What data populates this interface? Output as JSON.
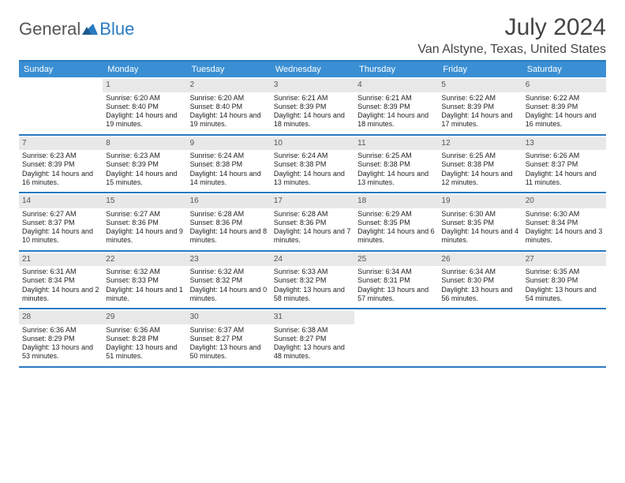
{
  "colors": {
    "accent": "#2a7ac0",
    "header_bg": "#3a8fd4",
    "daynum_bg": "#e8e8e8",
    "text": "#333333",
    "white": "#ffffff"
  },
  "logo": {
    "part1": "General",
    "part2": "Blue"
  },
  "title": "July 2024",
  "location": "Van Alstyne, Texas, United States",
  "weekdays": [
    "Sunday",
    "Monday",
    "Tuesday",
    "Wednesday",
    "Thursday",
    "Friday",
    "Saturday"
  ],
  "weeks": [
    [
      {
        "n": "",
        "empty": true
      },
      {
        "n": "1",
        "sunrise": "Sunrise: 6:20 AM",
        "sunset": "Sunset: 8:40 PM",
        "daylight": "Daylight: 14 hours and 19 minutes."
      },
      {
        "n": "2",
        "sunrise": "Sunrise: 6:20 AM",
        "sunset": "Sunset: 8:40 PM",
        "daylight": "Daylight: 14 hours and 19 minutes."
      },
      {
        "n": "3",
        "sunrise": "Sunrise: 6:21 AM",
        "sunset": "Sunset: 8:39 PM",
        "daylight": "Daylight: 14 hours and 18 minutes."
      },
      {
        "n": "4",
        "sunrise": "Sunrise: 6:21 AM",
        "sunset": "Sunset: 8:39 PM",
        "daylight": "Daylight: 14 hours and 18 minutes."
      },
      {
        "n": "5",
        "sunrise": "Sunrise: 6:22 AM",
        "sunset": "Sunset: 8:39 PM",
        "daylight": "Daylight: 14 hours and 17 minutes."
      },
      {
        "n": "6",
        "sunrise": "Sunrise: 6:22 AM",
        "sunset": "Sunset: 8:39 PM",
        "daylight": "Daylight: 14 hours and 16 minutes."
      }
    ],
    [
      {
        "n": "7",
        "sunrise": "Sunrise: 6:23 AM",
        "sunset": "Sunset: 8:39 PM",
        "daylight": "Daylight: 14 hours and 16 minutes."
      },
      {
        "n": "8",
        "sunrise": "Sunrise: 6:23 AM",
        "sunset": "Sunset: 8:39 PM",
        "daylight": "Daylight: 14 hours and 15 minutes."
      },
      {
        "n": "9",
        "sunrise": "Sunrise: 6:24 AM",
        "sunset": "Sunset: 8:38 PM",
        "daylight": "Daylight: 14 hours and 14 minutes."
      },
      {
        "n": "10",
        "sunrise": "Sunrise: 6:24 AM",
        "sunset": "Sunset: 8:38 PM",
        "daylight": "Daylight: 14 hours and 13 minutes."
      },
      {
        "n": "11",
        "sunrise": "Sunrise: 6:25 AM",
        "sunset": "Sunset: 8:38 PM",
        "daylight": "Daylight: 14 hours and 13 minutes."
      },
      {
        "n": "12",
        "sunrise": "Sunrise: 6:25 AM",
        "sunset": "Sunset: 8:38 PM",
        "daylight": "Daylight: 14 hours and 12 minutes."
      },
      {
        "n": "13",
        "sunrise": "Sunrise: 6:26 AM",
        "sunset": "Sunset: 8:37 PM",
        "daylight": "Daylight: 14 hours and 11 minutes."
      }
    ],
    [
      {
        "n": "14",
        "sunrise": "Sunrise: 6:27 AM",
        "sunset": "Sunset: 8:37 PM",
        "daylight": "Daylight: 14 hours and 10 minutes."
      },
      {
        "n": "15",
        "sunrise": "Sunrise: 6:27 AM",
        "sunset": "Sunset: 8:36 PM",
        "daylight": "Daylight: 14 hours and 9 minutes."
      },
      {
        "n": "16",
        "sunrise": "Sunrise: 6:28 AM",
        "sunset": "Sunset: 8:36 PM",
        "daylight": "Daylight: 14 hours and 8 minutes."
      },
      {
        "n": "17",
        "sunrise": "Sunrise: 6:28 AM",
        "sunset": "Sunset: 8:36 PM",
        "daylight": "Daylight: 14 hours and 7 minutes."
      },
      {
        "n": "18",
        "sunrise": "Sunrise: 6:29 AM",
        "sunset": "Sunset: 8:35 PM",
        "daylight": "Daylight: 14 hours and 6 minutes."
      },
      {
        "n": "19",
        "sunrise": "Sunrise: 6:30 AM",
        "sunset": "Sunset: 8:35 PM",
        "daylight": "Daylight: 14 hours and 4 minutes."
      },
      {
        "n": "20",
        "sunrise": "Sunrise: 6:30 AM",
        "sunset": "Sunset: 8:34 PM",
        "daylight": "Daylight: 14 hours and 3 minutes."
      }
    ],
    [
      {
        "n": "21",
        "sunrise": "Sunrise: 6:31 AM",
        "sunset": "Sunset: 8:34 PM",
        "daylight": "Daylight: 14 hours and 2 minutes."
      },
      {
        "n": "22",
        "sunrise": "Sunrise: 6:32 AM",
        "sunset": "Sunset: 8:33 PM",
        "daylight": "Daylight: 14 hours and 1 minute."
      },
      {
        "n": "23",
        "sunrise": "Sunrise: 6:32 AM",
        "sunset": "Sunset: 8:32 PM",
        "daylight": "Daylight: 14 hours and 0 minutes."
      },
      {
        "n": "24",
        "sunrise": "Sunrise: 6:33 AM",
        "sunset": "Sunset: 8:32 PM",
        "daylight": "Daylight: 13 hours and 58 minutes."
      },
      {
        "n": "25",
        "sunrise": "Sunrise: 6:34 AM",
        "sunset": "Sunset: 8:31 PM",
        "daylight": "Daylight: 13 hours and 57 minutes."
      },
      {
        "n": "26",
        "sunrise": "Sunrise: 6:34 AM",
        "sunset": "Sunset: 8:30 PM",
        "daylight": "Daylight: 13 hours and 56 minutes."
      },
      {
        "n": "27",
        "sunrise": "Sunrise: 6:35 AM",
        "sunset": "Sunset: 8:30 PM",
        "daylight": "Daylight: 13 hours and 54 minutes."
      }
    ],
    [
      {
        "n": "28",
        "sunrise": "Sunrise: 6:36 AM",
        "sunset": "Sunset: 8:29 PM",
        "daylight": "Daylight: 13 hours and 53 minutes."
      },
      {
        "n": "29",
        "sunrise": "Sunrise: 6:36 AM",
        "sunset": "Sunset: 8:28 PM",
        "daylight": "Daylight: 13 hours and 51 minutes."
      },
      {
        "n": "30",
        "sunrise": "Sunrise: 6:37 AM",
        "sunset": "Sunset: 8:27 PM",
        "daylight": "Daylight: 13 hours and 50 minutes."
      },
      {
        "n": "31",
        "sunrise": "Sunrise: 6:38 AM",
        "sunset": "Sunset: 8:27 PM",
        "daylight": "Daylight: 13 hours and 48 minutes."
      },
      {
        "n": "",
        "empty": true
      },
      {
        "n": "",
        "empty": true
      },
      {
        "n": "",
        "empty": true
      }
    ]
  ]
}
